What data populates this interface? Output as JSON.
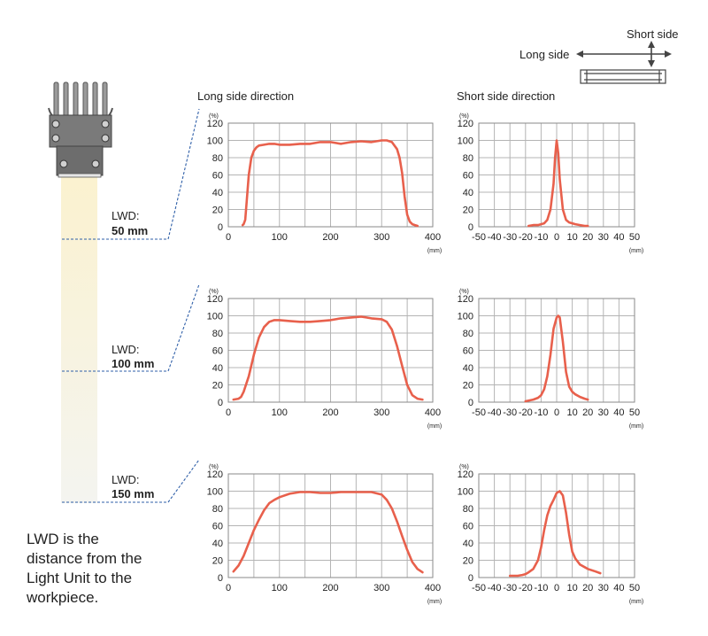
{
  "legend": {
    "long_label": "Long side",
    "short_label": "Short side"
  },
  "column_titles": {
    "long": "Long side direction",
    "short": "Short side direction"
  },
  "units": {
    "percent": "(%)",
    "mm": "(mm)"
  },
  "lwd_rows": [
    {
      "prefix": "LWD:",
      "value": "50 mm"
    },
    {
      "prefix": "LWD:",
      "value": "100 mm"
    },
    {
      "prefix": "LWD:",
      "value": "150 mm"
    }
  ],
  "note_lines": [
    "LWD is the",
    "distance from the",
    "Light Unit to the",
    "workpiece."
  ],
  "colors": {
    "curve": "#e8604c",
    "grid": "#b4b4b4",
    "dash": "#2f5fa8",
    "beam": "#f7f0d2"
  },
  "chart_data": [
    {
      "type": "line",
      "panel": "long-50",
      "xlim": [
        0,
        400
      ],
      "ylim": [
        0,
        120
      ],
      "xticks": [
        0,
        100,
        200,
        300,
        400
      ],
      "yticks": [
        0,
        20,
        40,
        60,
        80,
        100,
        120
      ],
      "series": [
        {
          "x": [
            28,
            30,
            33,
            36,
            40,
            45,
            50,
            55,
            60,
            70,
            80,
            90,
            100,
            120,
            140,
            160,
            180,
            200,
            220,
            240,
            260,
            280,
            300,
            310,
            320,
            330,
            335,
            340,
            345,
            350,
            355,
            360,
            365,
            370
          ],
          "y": [
            2,
            3,
            8,
            30,
            60,
            80,
            88,
            92,
            94,
            95,
            96,
            96,
            95,
            95,
            96,
            96,
            98,
            98,
            96,
            98,
            99,
            98,
            100,
            100,
            98,
            90,
            80,
            62,
            35,
            14,
            6,
            3,
            2,
            1
          ]
        }
      ]
    },
    {
      "type": "line",
      "panel": "short-50",
      "xlim": [
        -50,
        50
      ],
      "ylim": [
        0,
        120
      ],
      "xticks": [
        -50,
        -40,
        -30,
        -20,
        -10,
        0,
        10,
        20,
        30,
        40,
        50
      ],
      "yticks": [
        0,
        20,
        40,
        60,
        80,
        100,
        120
      ],
      "series": [
        {
          "x": [
            -18,
            -15,
            -12,
            -10,
            -8,
            -6,
            -4,
            -2,
            -1,
            0,
            1,
            2,
            4,
            6,
            8,
            10,
            12,
            15,
            18,
            20
          ],
          "y": [
            1,
            2,
            2,
            3,
            4,
            8,
            20,
            50,
            80,
            100,
            85,
            55,
            20,
            8,
            5,
            4,
            3,
            2,
            1,
            1
          ]
        }
      ]
    },
    {
      "type": "line",
      "panel": "long-100",
      "xlim": [
        0,
        400
      ],
      "ylim": [
        0,
        120
      ],
      "xticks": [
        0,
        100,
        200,
        300,
        400
      ],
      "yticks": [
        0,
        20,
        40,
        60,
        80,
        100,
        120
      ],
      "series": [
        {
          "x": [
            10,
            20,
            25,
            30,
            40,
            50,
            60,
            70,
            80,
            90,
            100,
            120,
            140,
            160,
            180,
            200,
            220,
            240,
            260,
            270,
            280,
            300,
            310,
            320,
            330,
            340,
            350,
            360,
            370,
            380
          ],
          "y": [
            3,
            4,
            6,
            12,
            30,
            55,
            75,
            87,
            93,
            95,
            95,
            94,
            93,
            93,
            94,
            95,
            97,
            98,
            99,
            98,
            97,
            96,
            93,
            84,
            65,
            42,
            20,
            8,
            4,
            3
          ]
        }
      ]
    },
    {
      "type": "line",
      "panel": "short-100",
      "xlim": [
        -50,
        50
      ],
      "ylim": [
        0,
        120
      ],
      "xticks": [
        -50,
        -40,
        -30,
        -20,
        -10,
        0,
        10,
        20,
        30,
        40,
        50
      ],
      "yticks": [
        0,
        20,
        40,
        60,
        80,
        100,
        120
      ],
      "series": [
        {
          "x": [
            -20,
            -15,
            -12,
            -10,
            -8,
            -6,
            -4,
            -2,
            0,
            1,
            2,
            4,
            6,
            8,
            10,
            12,
            15,
            18,
            20
          ],
          "y": [
            1,
            3,
            5,
            8,
            15,
            30,
            55,
            85,
            98,
            100,
            98,
            70,
            35,
            18,
            12,
            9,
            6,
            4,
            3
          ]
        }
      ]
    },
    {
      "type": "line",
      "panel": "long-150",
      "xlim": [
        0,
        400
      ],
      "ylim": [
        0,
        120
      ],
      "xticks": [
        0,
        100,
        200,
        300,
        400
      ],
      "yticks": [
        0,
        20,
        40,
        60,
        80,
        100,
        120
      ],
      "series": [
        {
          "x": [
            10,
            20,
            30,
            40,
            50,
            60,
            70,
            80,
            90,
            100,
            120,
            140,
            160,
            180,
            200,
            220,
            240,
            260,
            280,
            300,
            310,
            320,
            330,
            340,
            350,
            360,
            370,
            380
          ],
          "y": [
            7,
            14,
            25,
            40,
            55,
            67,
            78,
            86,
            90,
            93,
            97,
            99,
            99,
            98,
            98,
            99,
            99,
            99,
            99,
            96,
            90,
            80,
            65,
            48,
            32,
            18,
            10,
            6
          ]
        }
      ]
    },
    {
      "type": "line",
      "panel": "short-150",
      "xlim": [
        -50,
        50
      ],
      "ylim": [
        0,
        120
      ],
      "xticks": [
        -50,
        -40,
        -30,
        -20,
        -10,
        0,
        10,
        20,
        30,
        40,
        50
      ],
      "yticks": [
        0,
        20,
        40,
        60,
        80,
        100,
        120
      ],
      "series": [
        {
          "x": [
            -30,
            -25,
            -22,
            -20,
            -18,
            -15,
            -12,
            -10,
            -8,
            -6,
            -4,
            -2,
            0,
            2,
            4,
            6,
            8,
            10,
            12,
            15,
            18,
            20,
            25,
            28
          ],
          "y": [
            2,
            2,
            3,
            4,
            6,
            10,
            20,
            35,
            55,
            72,
            83,
            90,
            98,
            100,
            95,
            75,
            50,
            30,
            22,
            15,
            12,
            10,
            7,
            5
          ]
        }
      ]
    }
  ]
}
